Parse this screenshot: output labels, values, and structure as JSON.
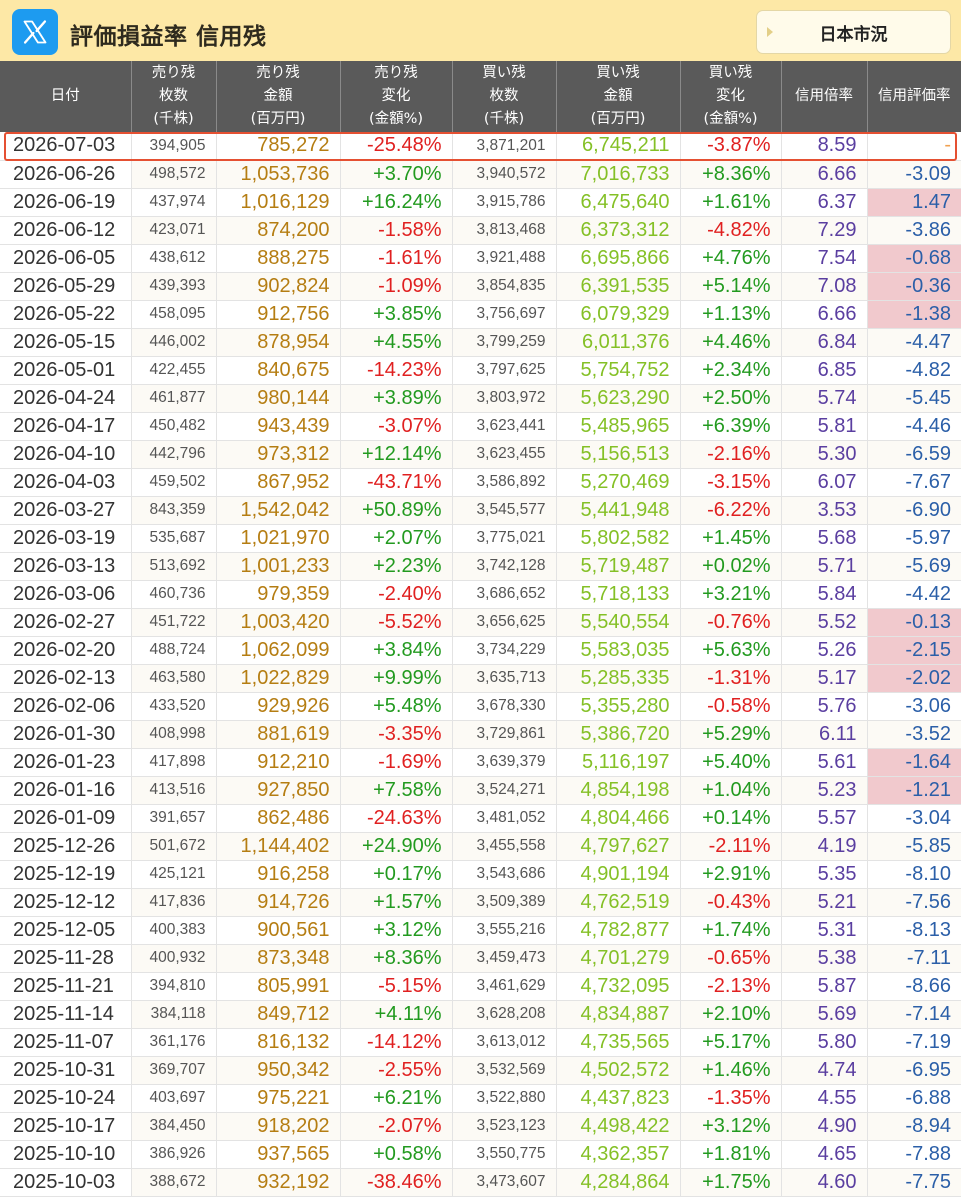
{
  "header": {
    "title": "評価損益率 信用残",
    "market_button": "日本市況"
  },
  "colors": {
    "header_bg": "#fde8a6",
    "table_header_bg": "#5a5a5a",
    "sell_amount": "#b57d12",
    "buy_amount": "#84c026",
    "positive": "#229a1f",
    "negative": "#e02020",
    "ratio": "#5a3ea0",
    "eval": "#2b5fa8",
    "eval_highlight": "#f1c9cd"
  },
  "icons": {
    "brand": "x-logo-icon",
    "market_button": "caret-right-icon"
  },
  "table": {
    "columns": [
      [
        "日付"
      ],
      [
        "売り残",
        "枚数",
        "(千株)"
      ],
      [
        "売り残",
        "金額",
        "(百万円)"
      ],
      [
        "売り残",
        "変化",
        "(金額%)"
      ],
      [
        "買い残",
        "枚数",
        "(千株)"
      ],
      [
        "買い残",
        "金額",
        "(百万円)"
      ],
      [
        "買い残",
        "変化",
        "(金額%)"
      ],
      [
        "信用倍率"
      ],
      [
        "信用評価率"
      ]
    ],
    "rows": [
      [
        "2026-07-03",
        "394,905",
        "785,272",
        "-25.48%",
        "3,871,201",
        "6,745,211",
        "-3.87%",
        "8.59",
        "-"
      ],
      [
        "2026-06-26",
        "498,572",
        "1,053,736",
        "+3.70%",
        "3,940,572",
        "7,016,733",
        "+8.36%",
        "6.66",
        "-3.09"
      ],
      [
        "2026-06-19",
        "437,974",
        "1,016,129",
        "+16.24%",
        "3,915,786",
        "6,475,640",
        "+1.61%",
        "6.37",
        "1.47"
      ],
      [
        "2026-06-12",
        "423,071",
        "874,200",
        "-1.58%",
        "3,813,468",
        "6,373,312",
        "-4.82%",
        "7.29",
        "-3.86"
      ],
      [
        "2026-06-05",
        "438,612",
        "888,275",
        "-1.61%",
        "3,921,488",
        "6,695,866",
        "+4.76%",
        "7.54",
        "-0.68"
      ],
      [
        "2026-05-29",
        "439,393",
        "902,824",
        "-1.09%",
        "3,854,835",
        "6,391,535",
        "+5.14%",
        "7.08",
        "-0.36"
      ],
      [
        "2026-05-22",
        "458,095",
        "912,756",
        "+3.85%",
        "3,756,697",
        "6,079,329",
        "+1.13%",
        "6.66",
        "-1.38"
      ],
      [
        "2026-05-15",
        "446,002",
        "878,954",
        "+4.55%",
        "3,799,259",
        "6,011,376",
        "+4.46%",
        "6.84",
        "-4.47"
      ],
      [
        "2026-05-01",
        "422,455",
        "840,675",
        "-14.23%",
        "3,797,625",
        "5,754,752",
        "+2.34%",
        "6.85",
        "-4.82"
      ],
      [
        "2026-04-24",
        "461,877",
        "980,144",
        "+3.89%",
        "3,803,972",
        "5,623,290",
        "+2.50%",
        "5.74",
        "-5.45"
      ],
      [
        "2026-04-17",
        "450,482",
        "943,439",
        "-3.07%",
        "3,623,441",
        "5,485,965",
        "+6.39%",
        "5.81",
        "-4.46"
      ],
      [
        "2026-04-10",
        "442,796",
        "973,312",
        "+12.14%",
        "3,623,455",
        "5,156,513",
        "-2.16%",
        "5.30",
        "-6.59"
      ],
      [
        "2026-04-03",
        "459,502",
        "867,952",
        "-43.71%",
        "3,586,892",
        "5,270,469",
        "-3.15%",
        "6.07",
        "-7.67"
      ],
      [
        "2026-03-27",
        "843,359",
        "1,542,042",
        "+50.89%",
        "3,545,577",
        "5,441,948",
        "-6.22%",
        "3.53",
        "-6.90"
      ],
      [
        "2026-03-19",
        "535,687",
        "1,021,970",
        "+2.07%",
        "3,775,021",
        "5,802,582",
        "+1.45%",
        "5.68",
        "-5.97"
      ],
      [
        "2026-03-13",
        "513,692",
        "1,001,233",
        "+2.23%",
        "3,742,128",
        "5,719,487",
        "+0.02%",
        "5.71",
        "-5.69"
      ],
      [
        "2026-03-06",
        "460,736",
        "979,359",
        "-2.40%",
        "3,686,652",
        "5,718,133",
        "+3.21%",
        "5.84",
        "-4.42"
      ],
      [
        "2026-02-27",
        "451,722",
        "1,003,420",
        "-5.52%",
        "3,656,625",
        "5,540,554",
        "-0.76%",
        "5.52",
        "-0.13"
      ],
      [
        "2026-02-20",
        "488,724",
        "1,062,099",
        "+3.84%",
        "3,734,229",
        "5,583,035",
        "+5.63%",
        "5.26",
        "-2.15"
      ],
      [
        "2026-02-13",
        "463,580",
        "1,022,829",
        "+9.99%",
        "3,635,713",
        "5,285,335",
        "-1.31%",
        "5.17",
        "-2.02"
      ],
      [
        "2026-02-06",
        "433,520",
        "929,926",
        "+5.48%",
        "3,678,330",
        "5,355,280",
        "-0.58%",
        "5.76",
        "-3.06"
      ],
      [
        "2026-01-30",
        "408,998",
        "881,619",
        "-3.35%",
        "3,729,861",
        "5,386,720",
        "+5.29%",
        "6.11",
        "-3.52"
      ],
      [
        "2026-01-23",
        "417,898",
        "912,210",
        "-1.69%",
        "3,639,379",
        "5,116,197",
        "+5.40%",
        "5.61",
        "-1.64"
      ],
      [
        "2026-01-16",
        "413,516",
        "927,850",
        "+7.58%",
        "3,524,271",
        "4,854,198",
        "+1.04%",
        "5.23",
        "-1.21"
      ],
      [
        "2026-01-09",
        "391,657",
        "862,486",
        "-24.63%",
        "3,481,052",
        "4,804,466",
        "+0.14%",
        "5.57",
        "-3.04"
      ],
      [
        "2025-12-26",
        "501,672",
        "1,144,402",
        "+24.90%",
        "3,455,558",
        "4,797,627",
        "-2.11%",
        "4.19",
        "-5.85"
      ],
      [
        "2025-12-19",
        "425,121",
        "916,258",
        "+0.17%",
        "3,543,686",
        "4,901,194",
        "+2.91%",
        "5.35",
        "-8.10"
      ],
      [
        "2025-12-12",
        "417,836",
        "914,726",
        "+1.57%",
        "3,509,389",
        "4,762,519",
        "-0.43%",
        "5.21",
        "-7.56"
      ],
      [
        "2025-12-05",
        "400,383",
        "900,561",
        "+3.12%",
        "3,555,216",
        "4,782,877",
        "+1.74%",
        "5.31",
        "-8.13"
      ],
      [
        "2025-11-28",
        "400,932",
        "873,348",
        "+8.36%",
        "3,459,473",
        "4,701,279",
        "-0.65%",
        "5.38",
        "-7.11"
      ],
      [
        "2025-11-21",
        "394,810",
        "805,991",
        "-5.15%",
        "3,461,629",
        "4,732,095",
        "-2.13%",
        "5.87",
        "-8.66"
      ],
      [
        "2025-11-14",
        "384,118",
        "849,712",
        "+4.11%",
        "3,628,208",
        "4,834,887",
        "+2.10%",
        "5.69",
        "-7.14"
      ],
      [
        "2025-11-07",
        "361,176",
        "816,132",
        "-14.12%",
        "3,613,012",
        "4,735,565",
        "+5.17%",
        "5.80",
        "-7.19"
      ],
      [
        "2025-10-31",
        "369,707",
        "950,342",
        "-2.55%",
        "3,532,569",
        "4,502,572",
        "+1.46%",
        "4.74",
        "-6.95"
      ],
      [
        "2025-10-24",
        "403,697",
        "975,221",
        "+6.21%",
        "3,522,880",
        "4,437,823",
        "-1.35%",
        "4.55",
        "-6.88"
      ],
      [
        "2025-10-17",
        "384,450",
        "918,202",
        "-2.07%",
        "3,523,123",
        "4,498,422",
        "+3.12%",
        "4.90",
        "-8.94"
      ],
      [
        "2025-10-10",
        "386,926",
        "937,565",
        "+0.58%",
        "3,550,775",
        "4,362,357",
        "+1.81%",
        "4.65",
        "-7.88"
      ],
      [
        "2025-10-03",
        "388,672",
        "932,192",
        "-38.46%",
        "3,473,607",
        "4,284,864",
        "+1.75%",
        "4.60",
        "-7.75"
      ]
    ],
    "highlighted_eval_rows": [
      2,
      4,
      5,
      6,
      17,
      18,
      19,
      22,
      23
    ],
    "month_separator_rows": [
      5,
      10,
      15,
      20,
      25,
      30,
      35
    ],
    "selected_row": 0
  }
}
